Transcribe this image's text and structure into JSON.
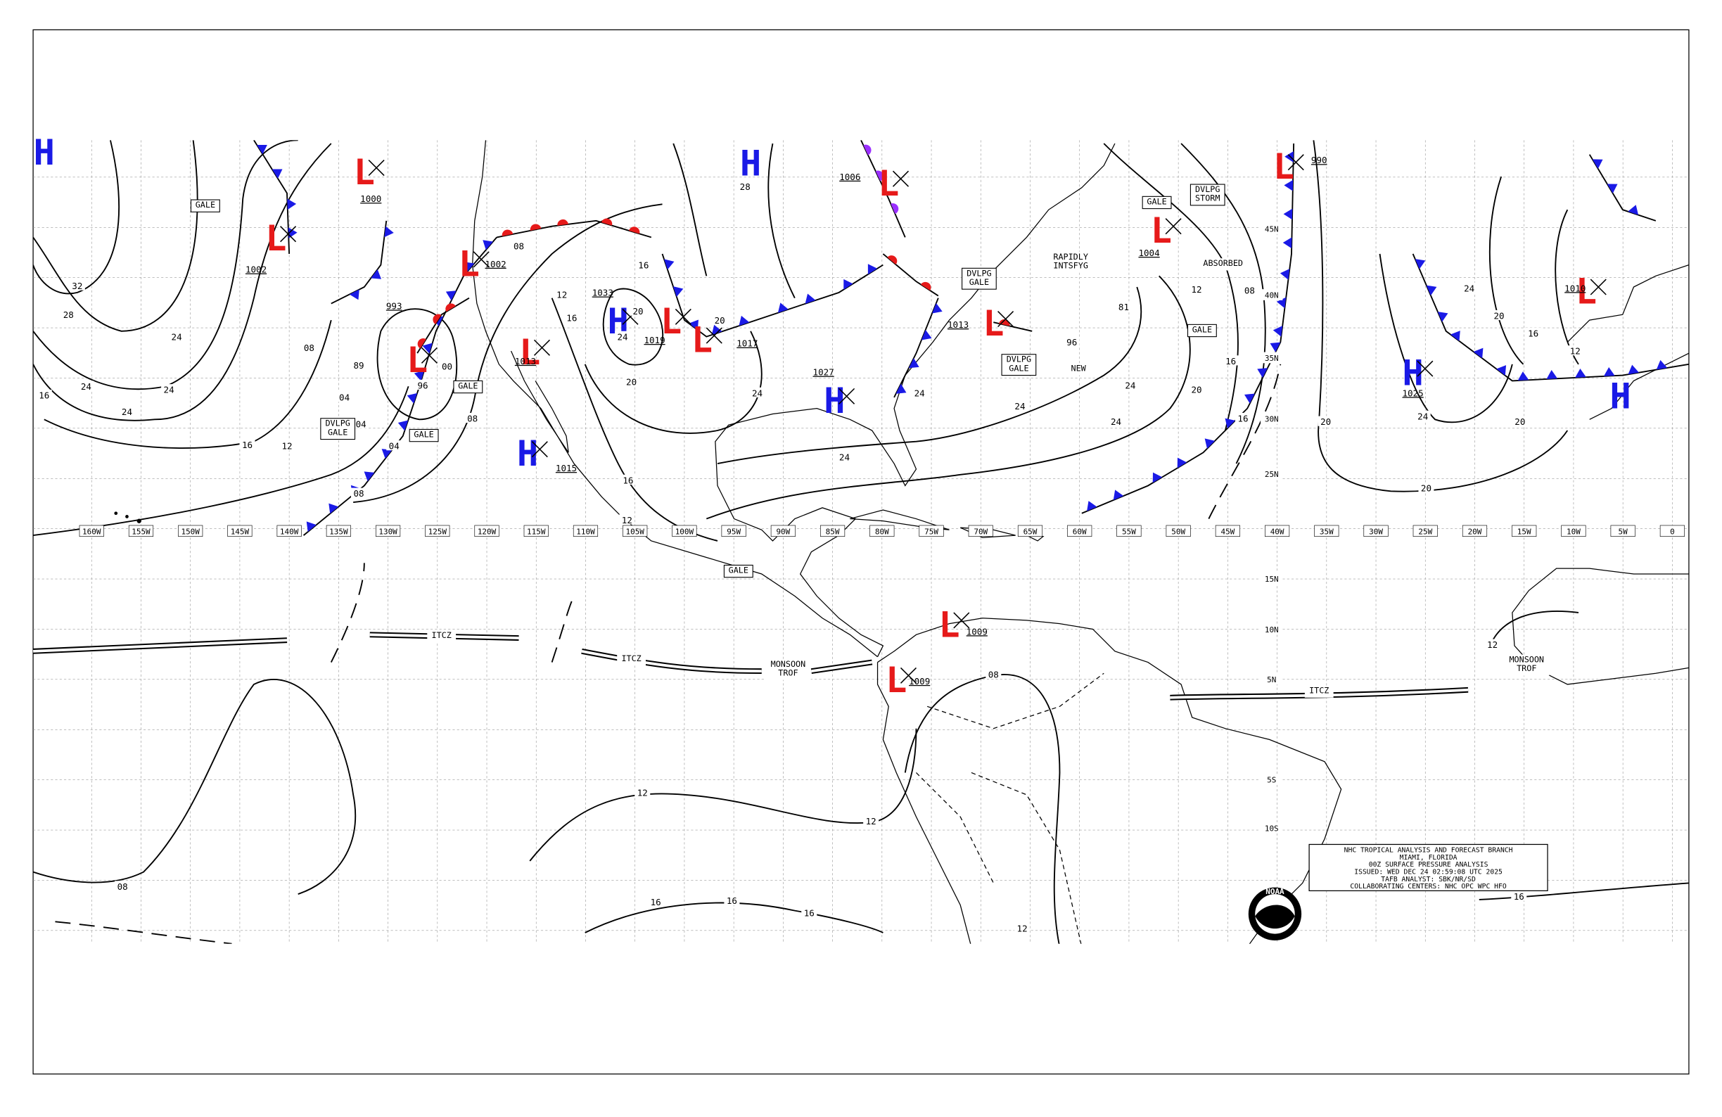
{
  "longitude_labels": [
    "160W",
    "155W",
    "150W",
    "145W",
    "140W",
    "135W",
    "130W",
    "125W",
    "120W",
    "115W",
    "110W",
    "105W",
    "100W",
    "95W",
    "90W",
    "85W",
    "80W",
    "75W",
    "70W",
    "65W",
    "60W",
    "55W",
    "50W",
    "45W",
    "40W",
    "35W",
    "30W",
    "25W",
    "20W",
    "15W",
    "10W",
    "5W",
    "0"
  ],
  "latitude_labels": [
    "45N",
    "40N",
    "35N",
    "30N",
    "25N",
    "15N",
    "10N",
    "5N",
    "5S",
    "10S"
  ],
  "pressure_centers": [
    {
      "symbol": "H",
      "color": "#1a1ae6"
    },
    {
      "symbol": "L",
      "value": "1000",
      "color": "#e61a1a"
    },
    {
      "symbol": "L",
      "value": "1002",
      "color": "#e61a1a"
    },
    {
      "symbol": "L",
      "value": "1002",
      "color": "#e61a1a"
    },
    {
      "symbol": "L",
      "value": "993",
      "color": "#e61a1a"
    },
    {
      "symbol": "H",
      "color": "#1a1ae6"
    },
    {
      "symbol": "L",
      "value": "1006",
      "color": "#e61a1a"
    },
    {
      "symbol": "H",
      "value": "1033",
      "color": "#1a1ae6"
    },
    {
      "symbol": "L",
      "value": "1019",
      "color": "#e61a1a"
    },
    {
      "symbol": "L",
      "value": "1017",
      "color": "#e61a1a"
    },
    {
      "symbol": "L",
      "value": "1013",
      "color": "#e61a1a"
    },
    {
      "symbol": "H",
      "value": "1015",
      "color": "#1a1ae6"
    },
    {
      "symbol": "H",
      "value": "1027",
      "color": "#1a1ae6"
    },
    {
      "symbol": "L",
      "value": "1013",
      "color": "#e61a1a"
    },
    {
      "symbol": "L",
      "value": "1004",
      "color": "#e61a1a"
    },
    {
      "symbol": "L",
      "value": "990",
      "color": "#e61a1a"
    },
    {
      "symbol": "H",
      "value": "1025",
      "color": "#1a1ae6"
    },
    {
      "symbol": "L",
      "value": "1010",
      "color": "#e61a1a"
    },
    {
      "symbol": "H",
      "color": "#1a1ae6"
    },
    {
      "symbol": "L",
      "value": "1009",
      "color": "#e61a1a"
    },
    {
      "symbol": "L",
      "value": "1009",
      "color": "#e61a1a"
    }
  ],
  "isobar_labels": [
    "32",
    "28",
    "24",
    "24",
    "24",
    "24",
    "16",
    "16",
    "12",
    "08",
    "04",
    "04",
    "04",
    "08",
    "00",
    "08",
    "08",
    "12",
    "16",
    "20",
    "16",
    "24",
    "20",
    "20",
    "24",
    "28",
    "24",
    "24",
    "24",
    "24",
    "24",
    "20",
    "16",
    "16",
    "12",
    "08",
    "96",
    "81",
    "16",
    "12",
    "08",
    "12",
    "12",
    "08",
    "16",
    "16",
    "16",
    "12",
    "20",
    "20",
    "24",
    "24",
    "20",
    "16",
    "12",
    "20",
    "16",
    "12",
    "89",
    "96"
  ],
  "annotations": [
    {
      "lines": [
        "GALE"
      ],
      "boxed": true
    },
    {
      "lines": [
        "GALE"
      ],
      "boxed": true
    },
    {
      "lines": [
        "GALE"
      ],
      "boxed": true
    },
    {
      "lines": [
        "GALE"
      ],
      "boxed": true
    },
    {
      "lines": [
        "GALE"
      ],
      "boxed": true
    },
    {
      "lines": [
        "GALE"
      ],
      "boxed": true
    },
    {
      "lines": [
        "DVLPG",
        "GALE"
      ],
      "boxed": true
    },
    {
      "lines": [
        "DVLPG",
        "STORM"
      ],
      "boxed": true
    },
    {
      "lines": [
        "DVLPG",
        "GALE"
      ],
      "boxed": true
    },
    {
      "lines": [
        "DVLPG",
        "GALE"
      ],
      "boxed": true
    },
    {
      "lines": [
        "RAPIDLY",
        "INTSFYG"
      ],
      "boxed": false
    },
    {
      "lines": [
        "ABSORBED"
      ],
      "boxed": false
    },
    {
      "lines": [
        "NEW"
      ],
      "boxed": false
    },
    {
      "lines": [
        "ITCZ"
      ],
      "boxed": false
    },
    {
      "lines": [
        "ITCZ"
      ],
      "boxed": false
    },
    {
      "lines": [
        "ITCZ"
      ],
      "boxed": false
    },
    {
      "lines": [
        "MONSOON",
        "TROF"
      ],
      "boxed": false
    },
    {
      "lines": [
        "MONSOON",
        "TROF"
      ],
      "boxed": false
    }
  ],
  "info_box": {
    "lines": [
      "NHC TROPICAL ANALYSIS AND FORECAST BRANCH",
      "MIAMI, FLORIDA",
      "00Z SURFACE PRESSURE ANALYSIS",
      "ISSUED: WED DEC 24 02:59:08 UTC 2025",
      "TAFB ANALYST: SBK/NR/SD",
      "COLLABORATING CENTERS: NHC OPC WPC HFO"
    ]
  },
  "logo": "NOAA"
}
